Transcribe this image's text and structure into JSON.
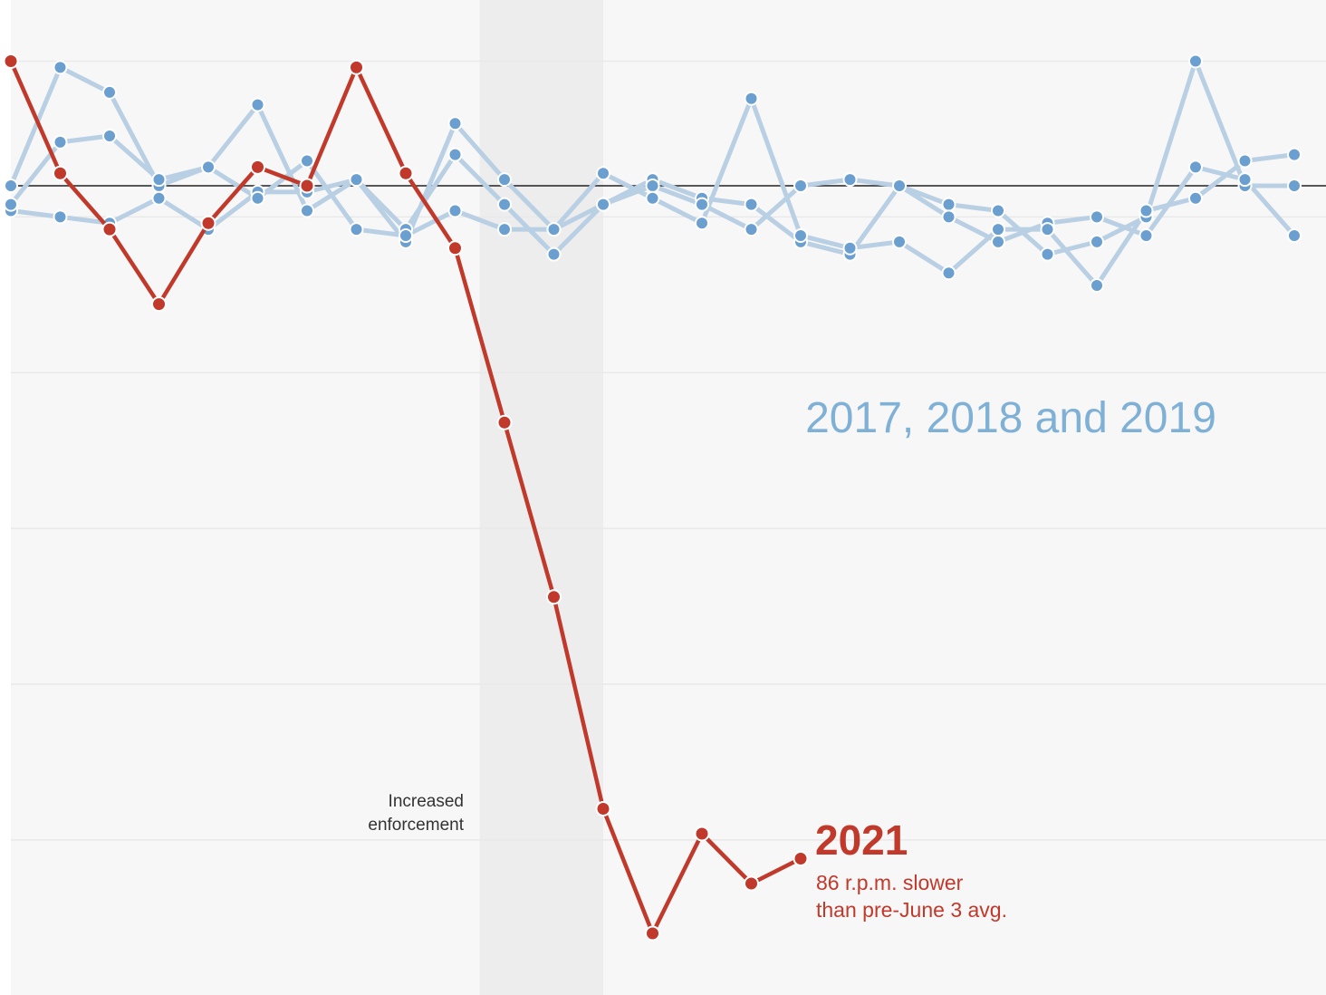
{
  "chart_data": {
    "type": "line",
    "title": "",
    "xlabel": "",
    "ylabel": "",
    "x_range": [
      0,
      26
    ],
    "y_range": [
      -60,
      10
    ],
    "grid": true,
    "reference_line": 0,
    "highlight_band": {
      "x_start": 9.5,
      "x_end": 12
    },
    "colors": {
      "series_2021": "#c0392b",
      "comparison": "#b9cfe3",
      "comparison_dots": "#6a9fcf",
      "band": "#ededee",
      "plot_bg": "#f7f7f7",
      "grid": "#e9e9e9",
      "baseline": "#222222"
    },
    "series": [
      {
        "id": "series_a",
        "values": [
          0,
          9.5,
          7.5,
          0,
          1.5,
          6.5,
          -2,
          0.5,
          -3.5,
          2.5,
          -1.5,
          -5.5,
          -1.5,
          0.5,
          -1,
          -1.5,
          -4.5,
          -5.5,
          0,
          -1.5,
          -2,
          -5.5,
          -4.5,
          -2.5,
          10,
          0,
          0
        ]
      },
      {
        "id": "series_b",
        "values": [
          -2,
          -2.5,
          -3,
          -1,
          -3.5,
          -0.5,
          -0.5,
          0.5,
          -4.5,
          5,
          0.5,
          -3.5,
          -1.5,
          0,
          -1.5,
          -3.5,
          0,
          0.5,
          0,
          -2.5,
          -4.5,
          -3,
          -2.5,
          -4,
          1.5,
          0.5,
          -4
        ]
      },
      {
        "id": "series_c",
        "values": [
          -1.5,
          3.5,
          4,
          0.5,
          1.5,
          -1,
          2,
          -3.5,
          -4,
          -2,
          -3.5,
          -3.5,
          1,
          -1,
          -3,
          7,
          -4,
          -5,
          -4.5,
          -7,
          -3.5,
          -3.5,
          -8,
          -2,
          -1,
          2,
          2.5
        ]
      },
      {
        "id": "series_2021",
        "values": [
          10,
          1,
          -3.5,
          -9.5,
          -3,
          1.5,
          0,
          9.5,
          1,
          -5,
          -19,
          -33,
          -50,
          -60,
          -52,
          -56,
          -54
        ]
      }
    ]
  },
  "labels": {
    "comparison_label": "2017, 2018 and 2019",
    "series_2021_label": "2021",
    "series_2021_note_line1": "86 r.p.m. slower",
    "series_2021_note_line2": "than pre-June 3 avg.",
    "band_label_line1": "Increased",
    "band_label_line2": "enforcement"
  }
}
